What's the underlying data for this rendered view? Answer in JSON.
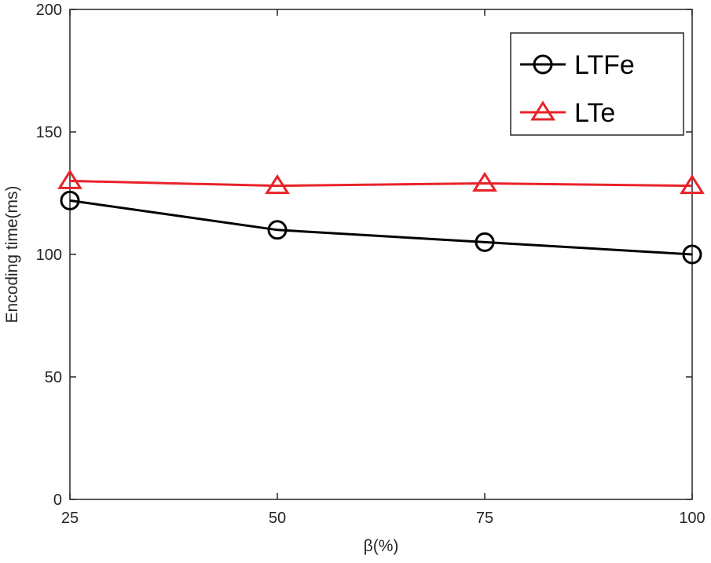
{
  "chart_data": {
    "type": "line",
    "title": "",
    "xlabel": "β(%)",
    "ylabel": "Encoding time(ms)",
    "x": [
      25,
      50,
      75,
      100
    ],
    "xlim": [
      25,
      100
    ],
    "ylim": [
      0,
      200
    ],
    "xticks": [
      25,
      50,
      75,
      100
    ],
    "xtick_labels": [
      "25",
      "50",
      "75",
      "100"
    ],
    "yticks": [
      0,
      50,
      100,
      150,
      200
    ],
    "ytick_labels": [
      "0",
      "50",
      "100",
      "150",
      "200"
    ],
    "grid": false,
    "legend_position": "top-right",
    "series": [
      {
        "name": "LTFe",
        "values": [
          122,
          110,
          105,
          100
        ],
        "color": "#000000",
        "marker": "circle"
      },
      {
        "name": "LTe",
        "values": [
          130,
          128,
          129,
          128
        ],
        "color": "#e8232a",
        "marker": "triangle"
      }
    ]
  }
}
